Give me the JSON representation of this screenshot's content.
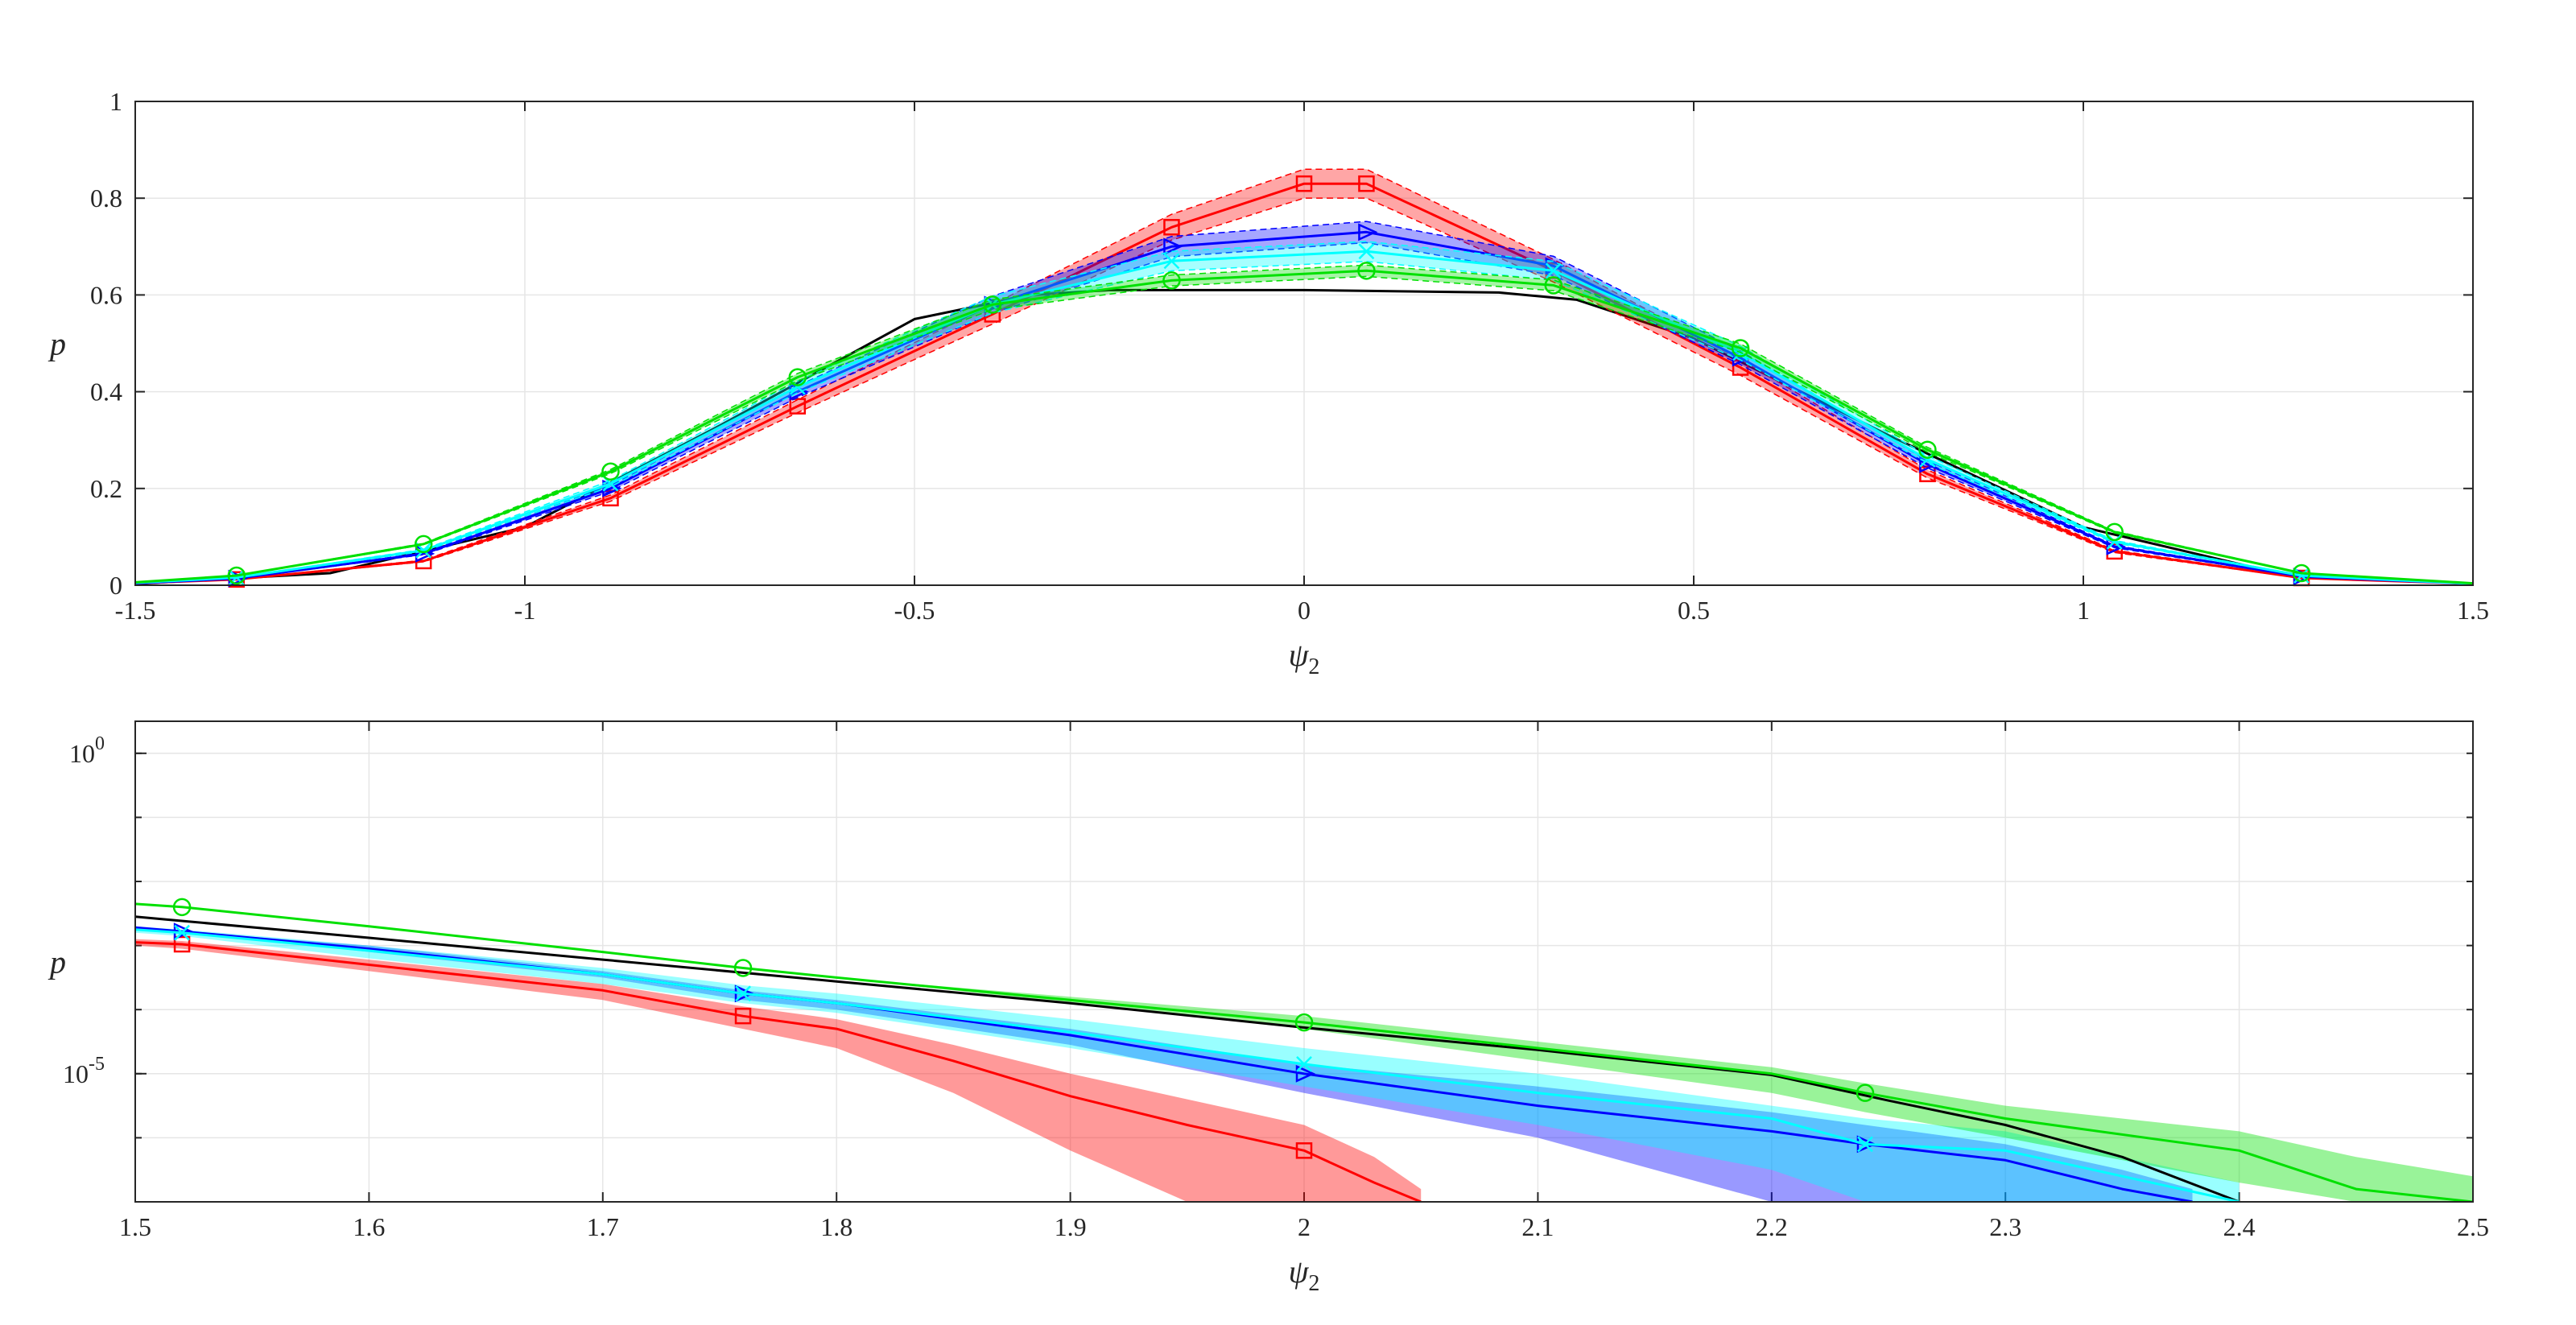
{
  "chart_data": [
    {
      "type": "line",
      "xlabel": "ψ",
      "xlabel_sub": "2",
      "ylabel": "p",
      "xlim": [
        -1.5,
        1.5
      ],
      "ylim": [
        0,
        1
      ],
      "x_ticks": [
        "-1.5",
        "-1",
        "-0.5",
        "0",
        "0.5",
        "1",
        "1.5"
      ],
      "y_ticks": [
        "0",
        "0.2",
        "0.4",
        "0.6",
        "0.8",
        "1"
      ],
      "grid": true,
      "legend": "none",
      "series": [
        {
          "color": "#000000",
          "marker": "none",
          "x": [
            -1.5,
            -1.25,
            -1.0,
            -0.75,
            -0.5,
            -0.35,
            -0.25,
            0,
            0.25,
            0.35,
            0.5,
            0.75,
            1.0,
            1.25,
            1.5
          ],
          "y": [
            0.003,
            0.025,
            0.12,
            0.33,
            0.55,
            0.6,
            0.61,
            0.61,
            0.605,
            0.59,
            0.51,
            0.31,
            0.12,
            0.025,
            0.003
          ]
        },
        {
          "color": "#ff0000",
          "marker": "square",
          "band": 0.03,
          "x": [
            -1.5,
            -1.37,
            -1.13,
            -0.89,
            -0.65,
            -0.4,
            -0.17,
            0,
            0.08,
            0.32,
            0.56,
            0.8,
            1.04,
            1.28,
            1.5
          ],
          "y": [
            0.004,
            0.012,
            0.05,
            0.18,
            0.37,
            0.56,
            0.74,
            0.83,
            0.83,
            0.65,
            0.45,
            0.23,
            0.07,
            0.015,
            0.003
          ]
        },
        {
          "color": "#0000ff",
          "marker": "triangle-right",
          "band": 0.025,
          "x": [
            -1.5,
            -1.37,
            -1.13,
            -0.89,
            -0.65,
            -0.4,
            -0.17,
            0.08,
            0.32,
            0.56,
            0.8,
            1.04,
            1.28,
            1.5
          ],
          "y": [
            0.004,
            0.014,
            0.065,
            0.2,
            0.4,
            0.58,
            0.7,
            0.73,
            0.66,
            0.47,
            0.25,
            0.08,
            0.018,
            0.003
          ]
        },
        {
          "color": "#00ffff",
          "marker": "x",
          "band": 0.025,
          "x": [
            -1.5,
            -1.37,
            -1.13,
            -0.89,
            -0.65,
            -0.4,
            -0.17,
            0.08,
            0.32,
            0.56,
            0.8,
            1.04,
            1.28,
            1.5
          ],
          "y": [
            0.005,
            0.016,
            0.072,
            0.21,
            0.41,
            0.58,
            0.67,
            0.69,
            0.65,
            0.48,
            0.26,
            0.09,
            0.02,
            0.003
          ]
        },
        {
          "color": "#00e000",
          "marker": "circle",
          "band": 0.015,
          "x": [
            -1.5,
            -1.37,
            -1.13,
            -0.89,
            -0.65,
            -0.4,
            -0.17,
            0.08,
            0.32,
            0.56,
            0.8,
            1.04,
            1.28,
            1.5
          ],
          "y": [
            0.006,
            0.02,
            0.085,
            0.235,
            0.43,
            0.58,
            0.63,
            0.65,
            0.62,
            0.49,
            0.28,
            0.11,
            0.025,
            0.004
          ]
        }
      ]
    },
    {
      "type": "line",
      "xlabel": "ψ",
      "xlabel_sub": "2",
      "ylabel": "p",
      "xlim": [
        1.5,
        2.5
      ],
      "ylim_log10": [
        -7,
        0.5
      ],
      "yscale": "log",
      "x_ticks": [
        "1.5",
        "1.6",
        "1.7",
        "1.8",
        "1.9",
        "2",
        "2.1",
        "2.2",
        "2.3",
        "2.4",
        "2.5"
      ],
      "y_ticks": [
        {
          "base": "10",
          "exp": "0",
          "log10": 0
        },
        {
          "base": "10",
          "exp": "-5",
          "log10": -5
        }
      ],
      "grid": true,
      "legend": "none",
      "series": [
        {
          "color": "#000000",
          "marker": "none",
          "x": [
            1.5,
            1.6,
            1.7,
            1.8,
            1.9,
            2.0,
            2.1,
            2.2,
            2.25,
            2.3,
            2.35,
            2.4
          ],
          "log10_y": [
            -2.55,
            -2.88,
            -3.22,
            -3.56,
            -3.9,
            -4.28,
            -4.63,
            -5.02,
            -5.42,
            -5.8,
            -6.3,
            -7.0
          ],
          "band_lo": [
            -2.55,
            -2.88,
            -3.22,
            -3.56,
            -3.9,
            -4.28,
            -4.63,
            -5.02,
            -5.6,
            -6.2,
            -7.0,
            -7.0
          ],
          "band_hi": [
            -2.55,
            -2.88,
            -3.22,
            -3.56,
            -3.9,
            -4.28,
            -4.63,
            -5.02,
            -5.42,
            -5.8,
            -6.3,
            -7.0
          ]
        },
        {
          "color": "#ff0000",
          "marker": "square",
          "x": [
            1.5,
            1.52,
            1.6,
            1.7,
            1.76,
            1.8,
            1.85,
            1.9,
            1.95,
            2.0,
            2.03,
            2.05
          ],
          "log10_y": [
            -2.95,
            -2.98,
            -3.3,
            -3.7,
            -4.1,
            -4.3,
            -4.8,
            -5.35,
            -5.8,
            -6.2,
            -6.7,
            -7.0
          ],
          "band_lo": [
            -3.0,
            -3.05,
            -3.4,
            -3.85,
            -4.3,
            -4.6,
            -5.3,
            -6.2,
            -7.0,
            -7.0,
            -7.0,
            -7.0
          ],
          "band_hi": [
            -2.9,
            -2.93,
            -3.22,
            -3.6,
            -3.95,
            -4.15,
            -4.55,
            -5.0,
            -5.4,
            -5.8,
            -6.3,
            -6.8
          ]
        },
        {
          "color": "#0000ff",
          "marker": "triangle-right",
          "x": [
            1.5,
            1.52,
            1.6,
            1.7,
            1.76,
            1.8,
            1.9,
            2.0,
            2.1,
            2.2,
            2.24,
            2.3,
            2.35,
            2.38
          ],
          "log10_y": [
            -2.72,
            -2.78,
            -3.05,
            -3.45,
            -3.75,
            -3.9,
            -4.4,
            -5.0,
            -5.5,
            -5.9,
            -6.1,
            -6.35,
            -6.8,
            -7.0
          ],
          "band_lo": [
            -2.72,
            -2.78,
            -3.1,
            -3.5,
            -3.85,
            -4.0,
            -4.55,
            -5.3,
            -6.0,
            -7.0,
            -7.0,
            -7.0,
            -7.0,
            -7.0
          ],
          "band_hi": [
            -2.72,
            -2.78,
            -3.0,
            -3.4,
            -3.7,
            -3.85,
            -4.3,
            -4.85,
            -5.2,
            -5.6,
            -5.8,
            -6.1,
            -6.5,
            -6.8
          ]
        },
        {
          "color": "#00ffff",
          "marker": "x",
          "x": [
            1.5,
            1.52,
            1.6,
            1.7,
            1.76,
            1.8,
            1.9,
            2.0,
            2.1,
            2.2,
            2.24,
            2.3,
            2.35,
            2.4
          ],
          "log10_y": [
            -2.75,
            -2.8,
            -3.08,
            -3.45,
            -3.75,
            -3.9,
            -4.35,
            -4.85,
            -5.3,
            -5.7,
            -6.1,
            -6.2,
            -6.6,
            -7.0
          ],
          "band_lo": [
            -2.8,
            -2.85,
            -3.2,
            -3.6,
            -3.9,
            -4.05,
            -4.6,
            -5.2,
            -5.8,
            -6.5,
            -7.0,
            -7.0,
            -7.0,
            -7.0
          ],
          "band_hi": [
            -2.7,
            -2.75,
            -3.0,
            -3.35,
            -3.62,
            -3.75,
            -4.15,
            -4.6,
            -5.0,
            -5.5,
            -5.7,
            -5.9,
            -6.3,
            -6.7
          ]
        },
        {
          "color": "#00e000",
          "marker": "circle",
          "x": [
            1.5,
            1.52,
            1.6,
            1.7,
            1.76,
            1.8,
            1.9,
            2.0,
            2.1,
            2.2,
            2.24,
            2.3,
            2.4,
            2.45,
            2.5
          ],
          "log10_y": [
            -2.35,
            -2.4,
            -2.7,
            -3.1,
            -3.35,
            -3.5,
            -3.85,
            -4.2,
            -4.6,
            -5.0,
            -5.3,
            -5.7,
            -6.2,
            -6.8,
            -7.0
          ],
          "band_lo": [
            -2.35,
            -2.4,
            -2.7,
            -3.1,
            -3.35,
            -3.5,
            -3.9,
            -4.3,
            -4.8,
            -5.3,
            -5.6,
            -6.0,
            -6.7,
            -7.0,
            -7.0
          ],
          "band_hi": [
            -2.35,
            -2.4,
            -2.7,
            -3.1,
            -3.35,
            -3.5,
            -3.8,
            -4.1,
            -4.5,
            -4.9,
            -5.15,
            -5.5,
            -5.9,
            -6.3,
            -6.6
          ]
        }
      ]
    }
  ]
}
